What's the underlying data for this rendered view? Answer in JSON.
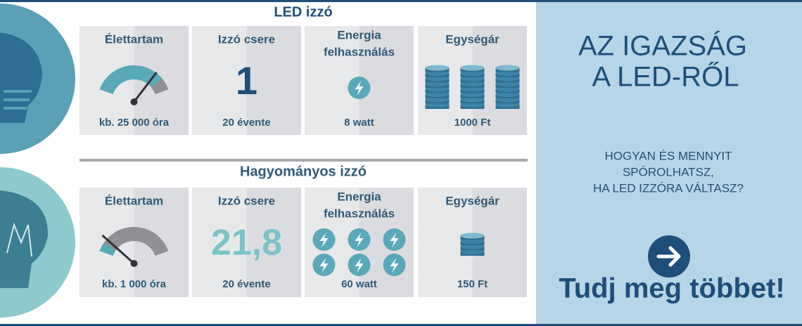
{
  "led": {
    "title": "LED izzó",
    "cards": [
      {
        "title": [
          "Élettartam"
        ],
        "value": "kb. 25 000 óra"
      },
      {
        "title": [
          "Izzó csere"
        ],
        "big": "1",
        "value": "20 évente"
      },
      {
        "title": [
          "Energia",
          "felhasználás"
        ],
        "value": "8 watt"
      },
      {
        "title": [
          "Egységár"
        ],
        "value": "1000 Ft"
      }
    ]
  },
  "traditional": {
    "title": "Hagyományos izzó",
    "cards": [
      {
        "title": [
          "Élettartam"
        ],
        "value": "kb. 1 000 óra"
      },
      {
        "title": [
          "Izzó csere"
        ],
        "big": "21,8",
        "value": "20 évente"
      },
      {
        "title": [
          "Energia",
          "felhasználás"
        ],
        "value": "60 watt"
      },
      {
        "title": [
          "Egységár"
        ],
        "value": "150 Ft"
      }
    ]
  },
  "promo": {
    "headline": [
      "AZ IGAZSÁG",
      "A LED-RŐL"
    ],
    "subtitle": [
      "HOGYAN ÉS MENNYIT",
      "SPÓROLHATSZ,",
      "HA LED IZZÓRA VÁLTASZ?"
    ],
    "cta": "Tudj meg többet!"
  }
}
